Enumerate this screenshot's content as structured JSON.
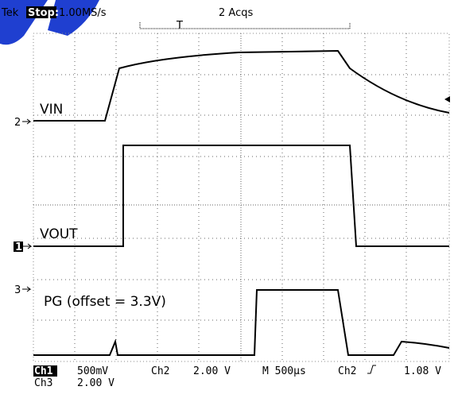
{
  "header": {
    "brand": "Tek",
    "state": "Stop:",
    "rate": "1.00MS/s",
    "acqs": "2 Acqs",
    "trigger_marker": "T"
  },
  "traces": {
    "vin": "VIN",
    "vout": "VOUT",
    "pg": "PG (offset = 3.3V)"
  },
  "markers": {
    "ch2": "2",
    "ch1": "1",
    "ch3": "3"
  },
  "footer": {
    "ch1": "Ch1",
    "ch1_scale": "500mV",
    "ch2": "Ch2",
    "ch2_scale": "2.00 V",
    "timebase": "M 500µs",
    "trig_src": "Ch2",
    "trig_level": "1.08 V",
    "ch3": "Ch3",
    "ch3_scale": "2.00 V"
  }
}
